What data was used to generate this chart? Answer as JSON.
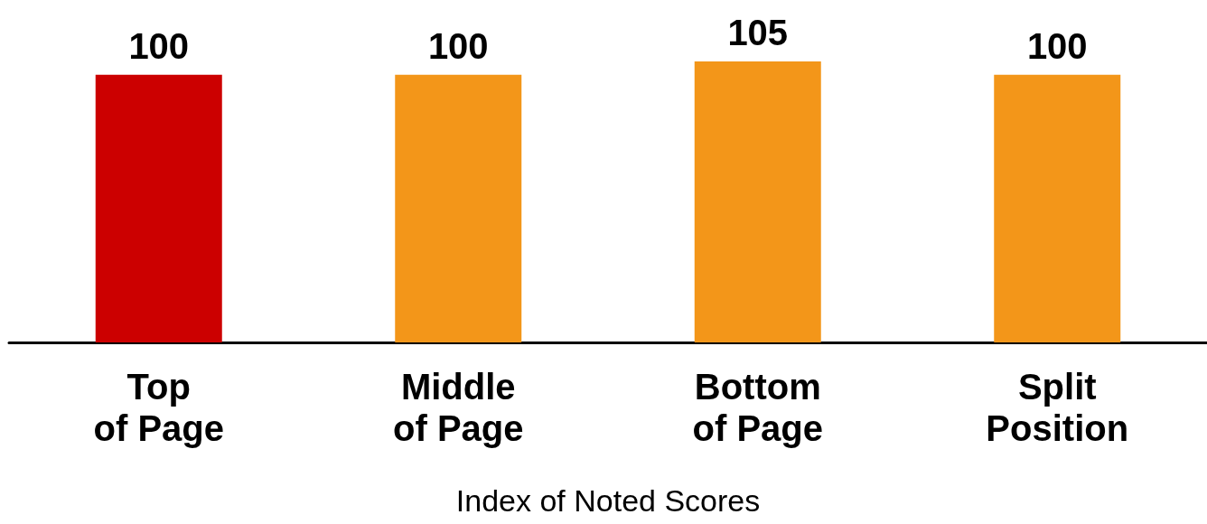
{
  "chart_data": {
    "type": "bar",
    "xlabel": "Index of Noted Scores",
    "categories": [
      "Top of Page",
      "Middle of Page",
      "Bottom of Page",
      "Split Position"
    ],
    "values": [
      100,
      100,
      105,
      100
    ],
    "colors": [
      "#cc0000",
      "#f39619",
      "#f39619",
      "#f39619"
    ],
    "data_labels": true
  }
}
